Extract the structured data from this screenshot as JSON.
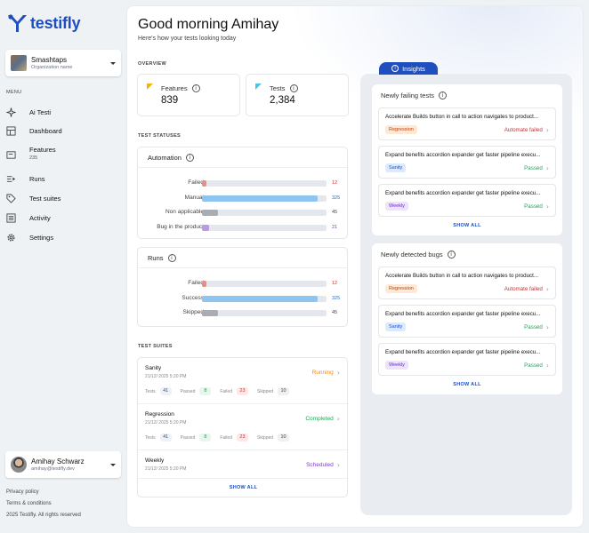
{
  "app": {
    "name": "testifly",
    "brand_color": "#1f4fbf"
  },
  "org": {
    "name": "Smashtaps",
    "sub": "Organization name"
  },
  "menu_title": "MENU",
  "nav": [
    {
      "label": "Ai Testi",
      "icon": "sparkle-icon"
    },
    {
      "label": "Dashboard",
      "icon": "dashboard-icon"
    },
    {
      "label": "Features",
      "sub": "235",
      "icon": "features-icon"
    },
    {
      "label": "Runs",
      "icon": "play-icon"
    },
    {
      "label": "Test suites",
      "icon": "tag-icon"
    },
    {
      "label": "Activity",
      "icon": "activity-icon"
    },
    {
      "label": "Settings",
      "icon": "gear-icon"
    }
  ],
  "user": {
    "name": "Amihay Schwarz",
    "email": "amihay@testifly.dev"
  },
  "footer": {
    "privacy": "Privacy policy",
    "terms": "Terms & conditions",
    "copyright": "2025 Testifly. All rights reserved"
  },
  "header": {
    "greeting": "Good morning Amihay",
    "subtitle": "Here's how your tests looking today"
  },
  "overview": {
    "title": "OVERVIEW",
    "features": {
      "label": "Features",
      "value": "839",
      "flag_color": "#f2b705"
    },
    "tests": {
      "label": "Tests",
      "value": "2,384",
      "flag_color": "#4fc3e8"
    }
  },
  "statuses": {
    "title": "TEST STATUSES",
    "automation": {
      "title": "Automation",
      "max": 350,
      "rows": [
        {
          "label": "Failed",
          "value": 12,
          "display": "12",
          "color": "#e88b8b",
          "text_color": "#d32f2f"
        },
        {
          "label": "Manual",
          "value": 325,
          "display": "325",
          "color": "#8ec5f0",
          "text_color": "#1e6fd9"
        },
        {
          "label": "Non applicable",
          "value": 45,
          "display": "45",
          "color": "#a9adb3",
          "text_color": "#444"
        },
        {
          "label": "Bug in the product",
          "value": 21,
          "display": "21",
          "color": "#b89be0",
          "text_color": "#7b3fc9"
        }
      ]
    },
    "runs": {
      "title": "Runs",
      "max": 350,
      "rows": [
        {
          "label": "Failed",
          "value": 12,
          "display": "12",
          "color": "#e88b8b",
          "text_color": "#d32f2f"
        },
        {
          "label": "Success",
          "value": 325,
          "display": "325",
          "color": "#8ec5f0",
          "text_color": "#1e6fd9"
        },
        {
          "label": "Skipped",
          "value": 45,
          "display": "45",
          "color": "#a9adb3",
          "text_color": "#444"
        }
      ]
    }
  },
  "suites": {
    "title": "TEST SUITES",
    "show_all": "SHOW ALL",
    "items": [
      {
        "name": "Sanity",
        "date": "21/12/ 2025 5:20 PM",
        "status": "Running",
        "status_color": "#f08c1a",
        "tests": "41",
        "passed": "8",
        "failed": "23",
        "skipped": "10",
        "has_stats": true
      },
      {
        "name": "Regression",
        "date": "21/12/ 2025 5:20 PM",
        "status": "Completed",
        "status_color": "#22a55a",
        "tests": "41",
        "passed": "8",
        "failed": "23",
        "skipped": "10",
        "has_stats": true
      },
      {
        "name": "Weekly",
        "date": "21/12/ 2025 5:20 PM",
        "status": "Scheduled",
        "status_color": "#7b3fc9",
        "has_stats": false
      }
    ],
    "labels": {
      "tests": "Tests",
      "passed": "Passed",
      "failed": "Failed",
      "skipped": "Skipped"
    }
  },
  "insights": {
    "tab": "Insights",
    "failing": {
      "title": "Newly failing tests",
      "show_all": "SHOW ALL",
      "items": [
        {
          "title": "Accelerate Builds button in call to action navigates to product...",
          "tag": "Regression",
          "tag_bg": "#fde9d6",
          "tag_color": "#c2410c",
          "status": "Automate failed",
          "status_color": "#d32f2f"
        },
        {
          "title": "Expand benefits accordion expander get faster pipeline execu...",
          "tag": "Sanity",
          "tag_bg": "#dbeafe",
          "tag_color": "#1d4ed8",
          "status": "Passed",
          "status_color": "#22a55a"
        },
        {
          "title": "Expand benefits accordion expander get faster pipeline execu...",
          "tag": "Weekly",
          "tag_bg": "#ede3fb",
          "tag_color": "#6d28d9",
          "status": "Passed",
          "status_color": "#22a55a"
        }
      ]
    },
    "bugs": {
      "title": "Newly detected bugs",
      "show_all": "SHOW ALL",
      "items": [
        {
          "title": "Accelerate Builds button in call to action navigates to product...",
          "tag": "Regression",
          "tag_bg": "#fde9d6",
          "tag_color": "#c2410c",
          "status": "Automate failed",
          "status_color": "#d32f2f"
        },
        {
          "title": "Expand benefits accordion expander get faster pipeline execu...",
          "tag": "Sanity",
          "tag_bg": "#dbeafe",
          "tag_color": "#1d4ed8",
          "status": "Passed",
          "status_color": "#22a55a"
        },
        {
          "title": "Expand benefits accordion expander get faster pipeline execu...",
          "tag": "Weekly",
          "tag_bg": "#ede3fb",
          "tag_color": "#6d28d9",
          "status": "Passed",
          "status_color": "#22a55a"
        }
      ]
    }
  }
}
